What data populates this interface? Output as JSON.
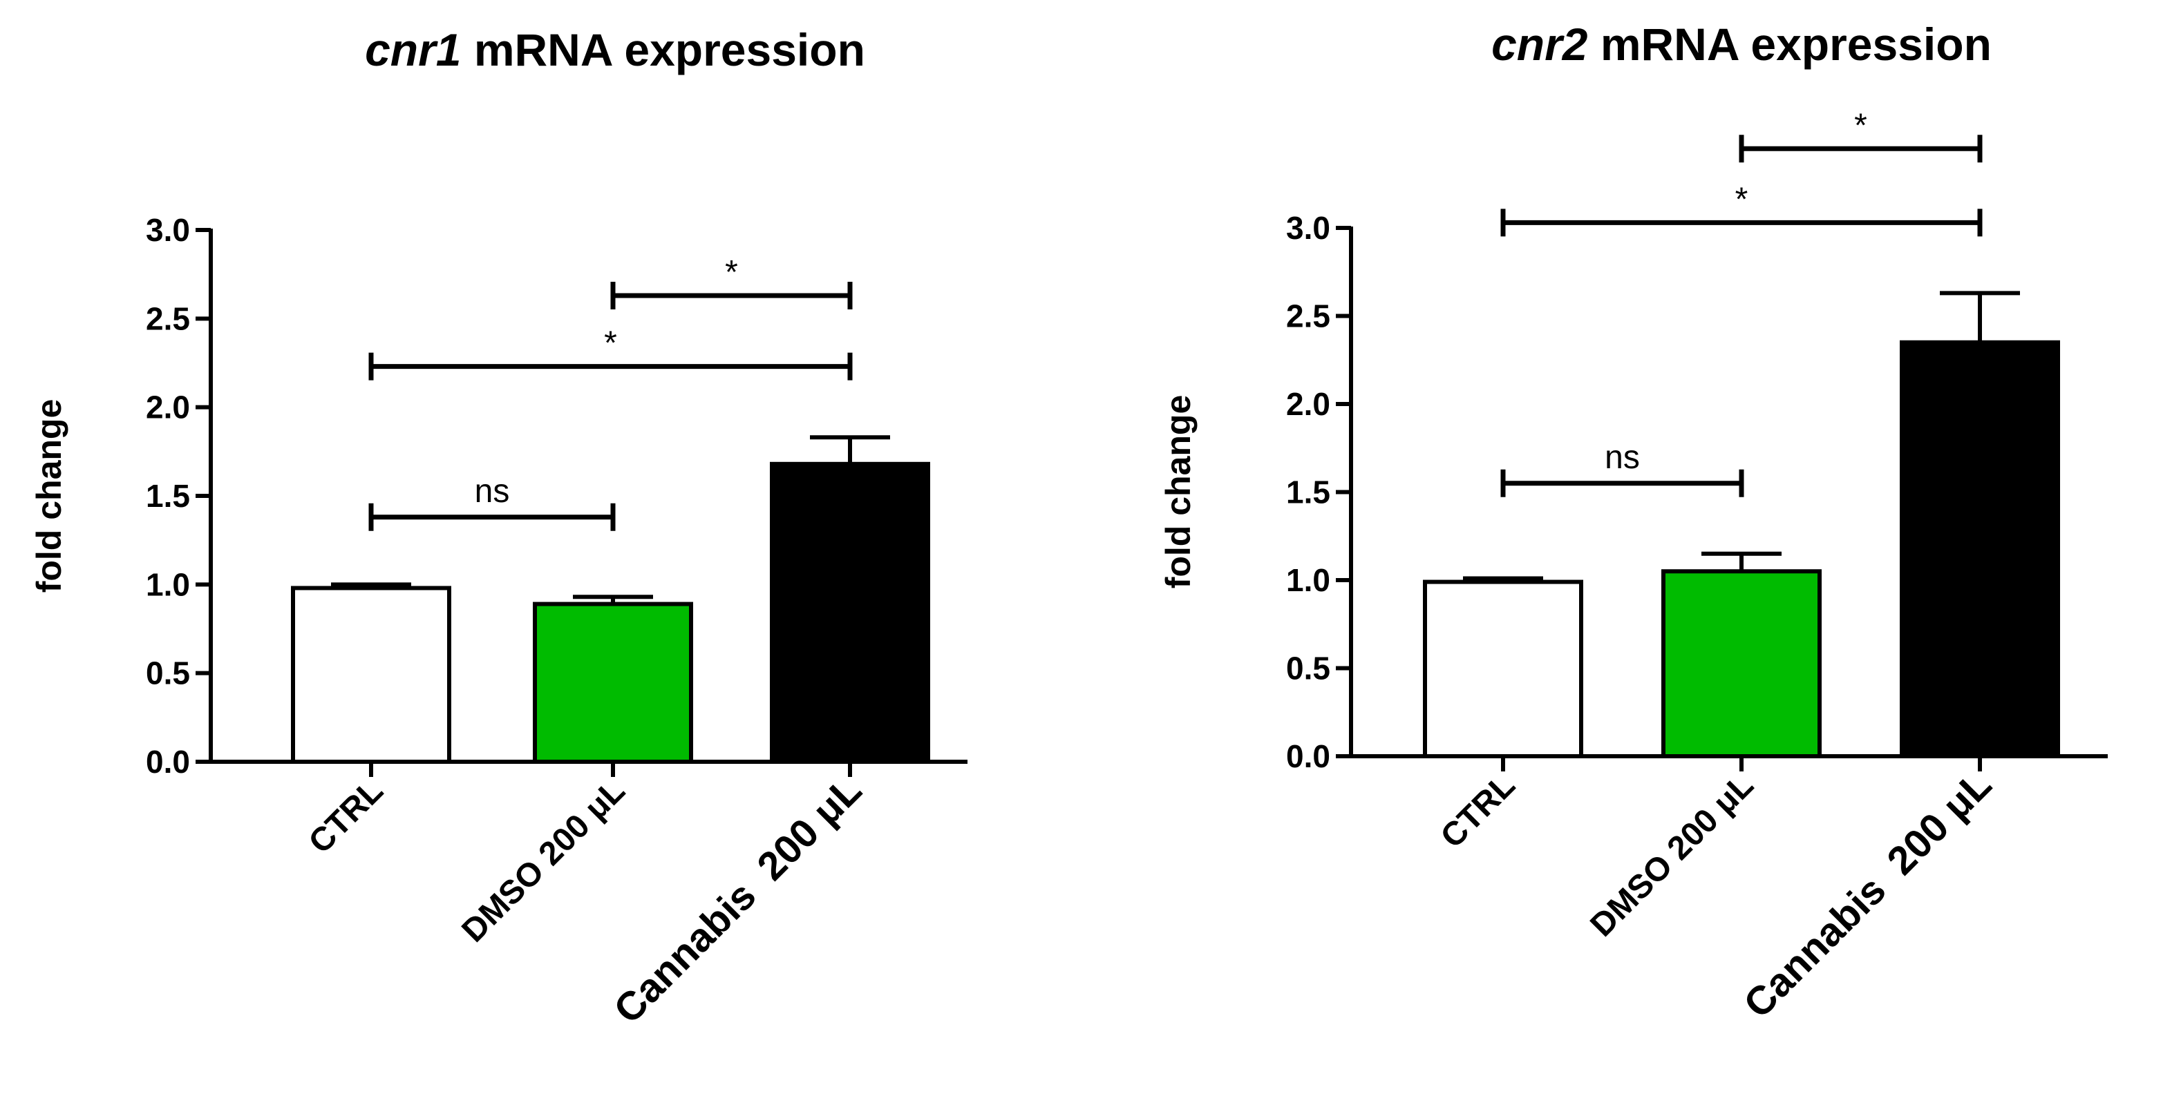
{
  "chart_data": [
    {
      "type": "bar",
      "title_gene": "cnr1",
      "title_rest": " mRNA expression",
      "ylabel": "fold change",
      "xlabel": "",
      "ylim": [
        0,
        3.0
      ],
      "yticks": [
        "0.0",
        "0.5",
        "1.0",
        "1.5",
        "2.0",
        "2.5",
        "3.0"
      ],
      "categories": [
        "CTRL",
        "DMSO 200 μL",
        "Cannabis  200 μL"
      ],
      "values": [
        0.98,
        0.89,
        1.68
      ],
      "errors": [
        0.02,
        0.04,
        0.15
      ],
      "bar_colors": [
        "#ffffff",
        "#00bb00",
        "#000000"
      ],
      "comparisons": [
        {
          "from": 0,
          "to": 1,
          "label": "ns",
          "y": 1.38
        },
        {
          "from": 0,
          "to": 2,
          "label": "*",
          "y": 2.23
        },
        {
          "from": 1,
          "to": 2,
          "label": "*",
          "y": 2.63
        }
      ]
    },
    {
      "type": "bar",
      "title_gene": "cnr2",
      "title_rest": " mRNA expression",
      "ylabel": "fold change",
      "xlabel": "",
      "ylim": [
        0,
        3.0
      ],
      "yticks": [
        "0.0",
        "0.5",
        "1.0",
        "1.5",
        "2.0",
        "2.5",
        "3.0"
      ],
      "categories": [
        "CTRL",
        "DMSO 200 μL",
        "Cannabis  200 μL"
      ],
      "values": [
        0.99,
        1.05,
        2.35
      ],
      "errors": [
        0.02,
        0.1,
        0.28
      ],
      "bar_colors": [
        "#ffffff",
        "#00bb00",
        "#000000"
      ],
      "comparisons": [
        {
          "from": 0,
          "to": 1,
          "label": "ns",
          "y": 1.55
        },
        {
          "from": 0,
          "to": 2,
          "label": "*",
          "y": 3.03
        },
        {
          "from": 1,
          "to": 2,
          "label": "*",
          "y": 3.45
        }
      ]
    }
  ]
}
